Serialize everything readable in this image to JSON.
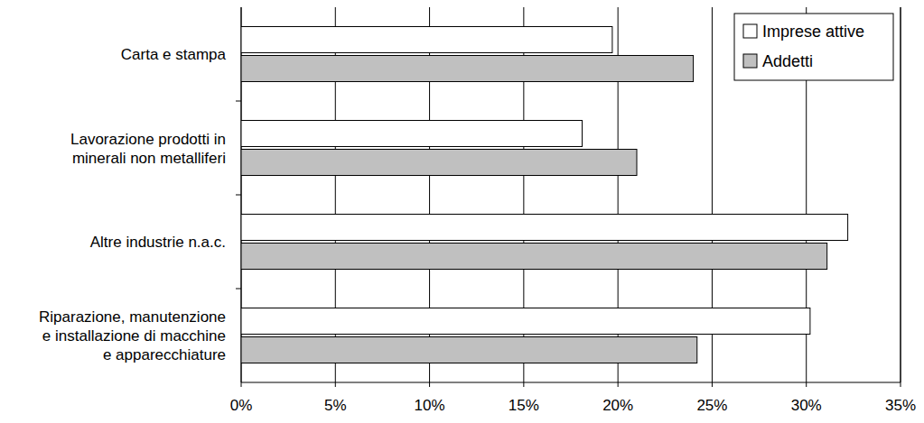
{
  "chart_data": {
    "type": "bar",
    "orientation": "horizontal",
    "categories": [
      "Carta e stampa",
      "Lavorazione prodotti in\nminerali non metalliferi",
      "Altre industrie n.a.c.",
      "Riparazione, manutenzione\ne installazione di macchine\ne apparecchiature"
    ],
    "series": [
      {
        "name": "Imprese attive",
        "color": "#ffffff",
        "values": [
          19.7,
          18.1,
          32.2,
          30.2
        ]
      },
      {
        "name": "Addetti",
        "color": "#c0c0c0",
        "values": [
          24.0,
          21.0,
          31.1,
          24.2
        ]
      }
    ],
    "xlim": [
      0,
      35
    ],
    "xticks": [
      {
        "value": 0,
        "label": "0%"
      },
      {
        "value": 5,
        "label": "5%"
      },
      {
        "value": 10,
        "label": "10%"
      },
      {
        "value": 15,
        "label": "15%"
      },
      {
        "value": 20,
        "label": "20%"
      },
      {
        "value": 25,
        "label": "25%"
      },
      {
        "value": 30,
        "label": "30%"
      },
      {
        "value": 35,
        "label": "35%"
      }
    ],
    "grid": true,
    "legend": "upper right"
  }
}
